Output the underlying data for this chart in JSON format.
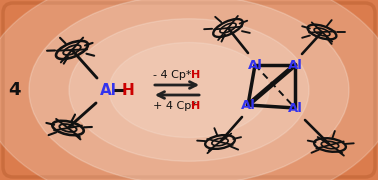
{
  "bg_color_outer": "#d4622a",
  "bg_gradient_center": "#f8ede4",
  "label_4": "4",
  "label_Al": "Al",
  "label_H": "H",
  "label_top_black": "- 4 Cp*",
  "label_top_red": "H",
  "label_bottom_black": "+ 4 Cp*",
  "label_bottom_red": "H",
  "color_Al": "#3333ee",
  "color_H": "#cc0000",
  "color_black": "#111111",
  "arrow_color": "#222222",
  "bond_color": "#111111"
}
